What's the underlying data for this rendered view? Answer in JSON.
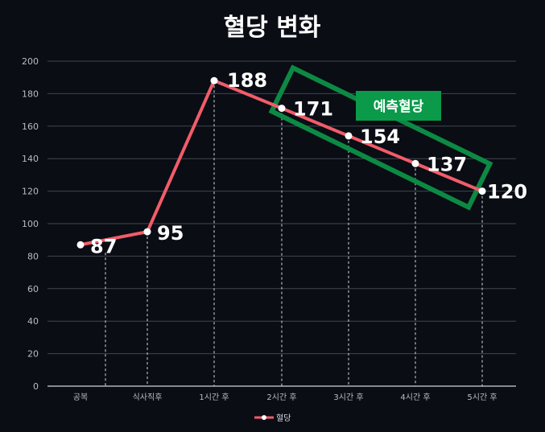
{
  "chart_data": {
    "type": "line",
    "title": "혈당 변화",
    "categories": [
      "공복",
      "식사직후",
      "1시간 후",
      "2시간 후",
      "3시간 후",
      "4시간 후",
      "5시간 후"
    ],
    "series": [
      {
        "name": "혈당",
        "values": [
          87,
          95,
          188,
          171,
          154,
          137,
          120
        ],
        "color": "#f25c6a"
      }
    ],
    "ylim": [
      0,
      200
    ],
    "yticks": [
      0,
      20,
      40,
      60,
      80,
      100,
      120,
      140,
      160,
      180,
      200
    ],
    "grid": true,
    "legend_position": "bottom",
    "annotation": {
      "text": "예측혈당",
      "box_color": "#0a9a4a",
      "frame_color": "#0c8a44"
    }
  }
}
